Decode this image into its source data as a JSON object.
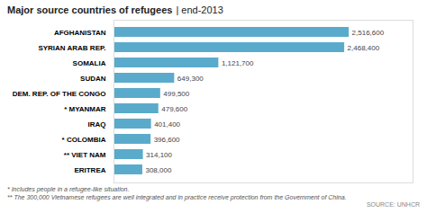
{
  "chart_data": {
    "type": "bar",
    "orientation": "horizontal",
    "title": "Major source countries of refugees",
    "subtitle": "| end-2013",
    "categories": [
      "AFGHANISTAN",
      "SYRIAN ARAB REP.",
      "SOMALIA",
      "SUDAN",
      "DEM. REP. OF THE CONGO",
      "* MYANMAR",
      "IRAQ",
      "* COLOMBIA",
      "** VIET NAM",
      "ERITREA"
    ],
    "values": [
      2516600,
      2468400,
      1121700,
      649300,
      499500,
      479600,
      401400,
      396600,
      314100,
      308000
    ],
    "value_labels": [
      "2,516,600",
      "2,468,400",
      "1,121,700",
      "649,300",
      "499,500",
      "479,600",
      "401,400",
      "396,600",
      "314,100",
      "308,000"
    ],
    "data_labels": true,
    "color": "#5aabcb",
    "xlim": [
      0,
      3200000
    ],
    "tick_labels": "y",
    "annotations": [
      "* Includes people in a refugee-like situation.",
      "** The 300,000 Vietnamese refugees are well integrated and in practice receive protection from the Government of China.",
      "SOURCE: UNHCR"
    ]
  }
}
